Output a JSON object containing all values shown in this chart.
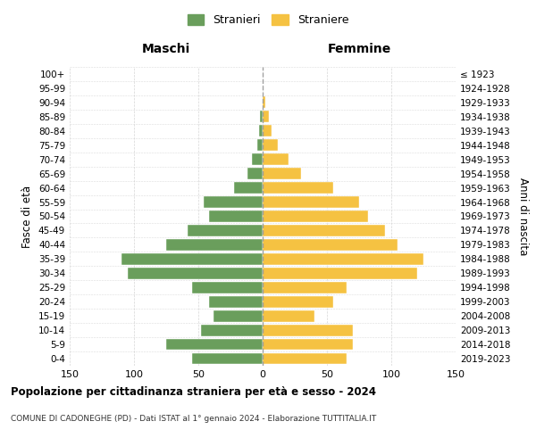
{
  "age_groups": [
    "0-4",
    "5-9",
    "10-14",
    "15-19",
    "20-24",
    "25-29",
    "30-34",
    "35-39",
    "40-44",
    "45-49",
    "50-54",
    "55-59",
    "60-64",
    "65-69",
    "70-74",
    "75-79",
    "80-84",
    "85-89",
    "90-94",
    "95-99",
    "100+"
  ],
  "birth_years": [
    "2019-2023",
    "2014-2018",
    "2009-2013",
    "2004-2008",
    "1999-2003",
    "1994-1998",
    "1989-1993",
    "1984-1988",
    "1979-1983",
    "1974-1978",
    "1969-1973",
    "1964-1968",
    "1959-1963",
    "1954-1958",
    "1949-1953",
    "1944-1948",
    "1939-1943",
    "1934-1938",
    "1929-1933",
    "1924-1928",
    "≤ 1923"
  ],
  "maschi": [
    55,
    75,
    48,
    38,
    42,
    55,
    105,
    110,
    75,
    58,
    42,
    46,
    22,
    12,
    8,
    4,
    3,
    2,
    0,
    0,
    0
  ],
  "femmine": [
    65,
    70,
    70,
    40,
    55,
    65,
    120,
    125,
    105,
    95,
    82,
    75,
    55,
    30,
    20,
    12,
    7,
    5,
    2,
    0,
    0
  ],
  "maschi_color": "#6a9e5c",
  "femmine_color": "#f5c242",
  "title": "Popolazione per cittadinanza straniera per età e sesso - 2024",
  "subtitle": "COMUNE DI CADONEGHE (PD) - Dati ISTAT al 1° gennaio 2024 - Elaborazione TUTTITALIA.IT",
  "xlabel_left": "Maschi",
  "xlabel_right": "Femmine",
  "ylabel_left": "Fasce di età",
  "ylabel_right": "Anni di nascita",
  "legend_maschi": "Stranieri",
  "legend_femmine": "Straniere",
  "xlim": 150,
  "background_color": "#ffffff",
  "grid_color": "#cccccc"
}
